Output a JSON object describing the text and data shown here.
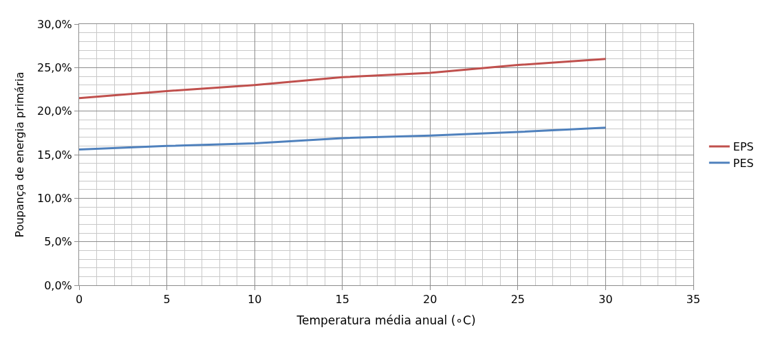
{
  "chart_data": {
    "type": "line",
    "xlabel": "Temperatura média anual (∘C)",
    "ylabel": "Poupança de energia primária",
    "x": [
      0,
      5,
      10,
      15,
      20,
      25,
      30
    ],
    "series": [
      {
        "name": "EPS",
        "color": "#c0504d",
        "values": [
          21.5,
          22.3,
          23.0,
          23.9,
          24.4,
          25.3,
          26.0
        ]
      },
      {
        "name": "PES",
        "color": "#4f81bd",
        "values": [
          15.6,
          16.0,
          16.3,
          16.9,
          17.2,
          17.6,
          18.1
        ]
      }
    ],
    "xlim": [
      0,
      35
    ],
    "xticks": [
      0,
      5,
      10,
      15,
      20,
      25,
      30,
      35,
      {
        "value": 1,
        "label": null
      },
      {
        "value": 2,
        "label": null
      },
      {
        "value": 3,
        "label": null
      },
      {
        "value": 4,
        "label": null
      },
      {
        "value": 6,
        "label": null
      },
      {
        "value": 7,
        "label": null
      },
      {
        "value": 8,
        "label": null
      },
      {
        "value": 9,
        "label": null
      },
      {
        "value": 11,
        "label": null
      },
      {
        "value": 12,
        "label": null
      },
      {
        "value": 13,
        "label": null
      },
      {
        "value": 14,
        "label": null
      },
      {
        "value": 16,
        "label": null
      },
      {
        "value": 17,
        "label": null
      },
      {
        "value": 18,
        "label": null
      },
      {
        "value": 19,
        "label": null
      },
      {
        "value": 21,
        "label": null
      },
      {
        "value": 22,
        "label": null
      },
      {
        "value": 23,
        "label": null
      },
      {
        "value": 24,
        "label": null
      },
      {
        "value": 26,
        "label": null
      },
      {
        "value": 27,
        "label": null
      },
      {
        "value": 28,
        "label": null
      },
      {
        "value": 29,
        "label": null
      },
      {
        "value": 31,
        "label": null
      },
      {
        "value": 32,
        "label": null
      },
      {
        "value": 33,
        "label": null
      },
      {
        "value": 34,
        "label": null
      }
    ],
    "ylim": [
      0,
      30
    ],
    "yticks": [
      {
        "value": 0,
        "label": "0,0%"
      },
      {
        "value": 5,
        "label": "5,0%"
      },
      {
        "value": 10,
        "label": "10,0%"
      },
      {
        "value": 15,
        "label": "15,0%"
      },
      {
        "value": 20,
        "label": "20,0%"
      },
      {
        "value": 25,
        "label": "25,0%"
      },
      {
        "value": 30,
        "label": "30,0%"
      },
      {
        "value": 1,
        "label": null
      },
      {
        "value": 2,
        "label": null
      },
      {
        "value": 3,
        "label": null
      },
      {
        "value": 4,
        "label": null
      },
      {
        "value": 6,
        "label": null
      },
      {
        "value": 7,
        "label": null
      },
      {
        "value": 8,
        "label": null
      },
      {
        "value": 9,
        "label": null
      },
      {
        "value": 11,
        "label": null
      },
      {
        "value": 12,
        "label": null
      },
      {
        "value": 13,
        "label": null
      },
      {
        "value": 14,
        "label": null
      },
      {
        "value": 16,
        "label": null
      },
      {
        "value": 17,
        "label": null
      },
      {
        "value": 18,
        "label": null
      },
      {
        "value": 19,
        "label": null
      },
      {
        "value": 21,
        "label": null
      },
      {
        "value": 22,
        "label": null
      },
      {
        "value": 23,
        "label": null
      },
      {
        "value": 24,
        "label": null
      },
      {
        "value": 26,
        "label": null
      },
      {
        "value": 27,
        "label": null
      },
      {
        "value": 28,
        "label": null
      },
      {
        "value": 29,
        "label": null
      }
    ],
    "grid": true,
    "legend": "right",
    "marker": "none",
    "line_style": "solid"
  }
}
